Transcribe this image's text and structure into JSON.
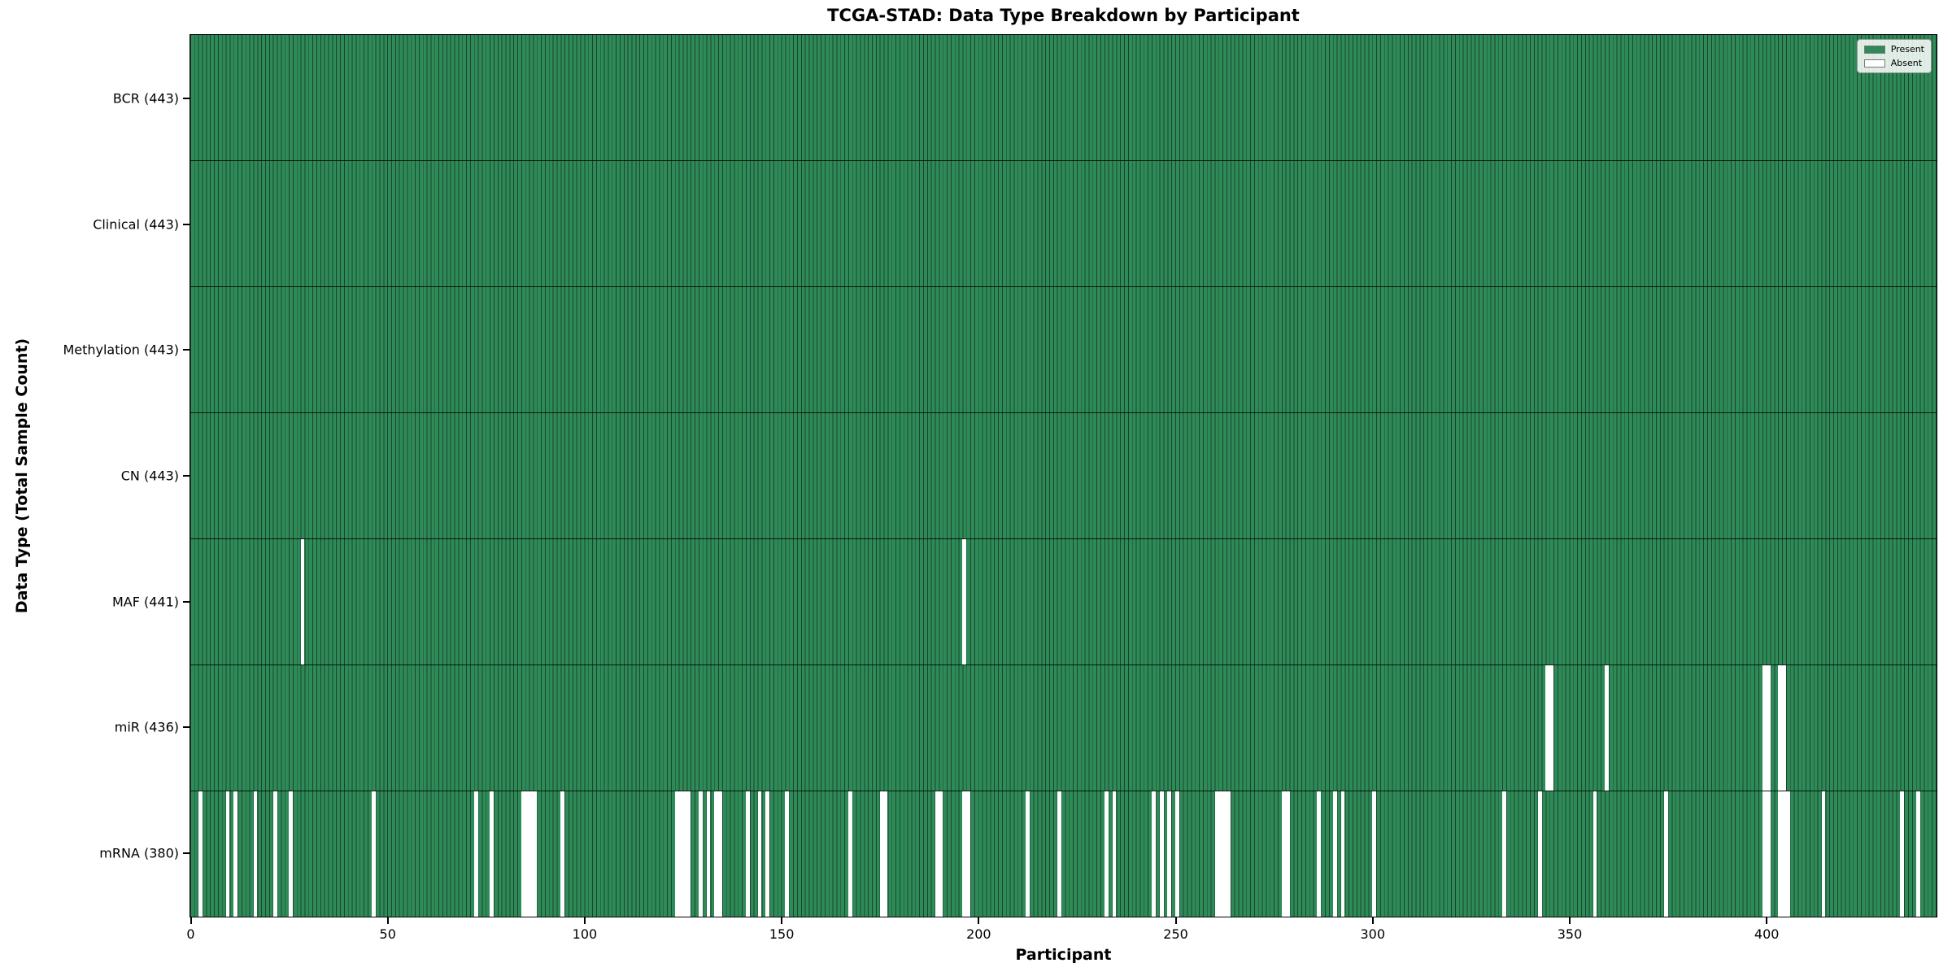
{
  "title": "TCGA-STAD: Data Type Breakdown by Participant",
  "x_axis": {
    "label": "Participant",
    "ticks": [
      0,
      50,
      100,
      150,
      200,
      250,
      300,
      350,
      400
    ]
  },
  "y_axis": {
    "label": "Data Type (Total Sample Count)"
  },
  "legend": {
    "present_label": "Present",
    "absent_label": "Absent"
  },
  "colors": {
    "present": "#2e8b57",
    "absent": "#ffffff",
    "bar_edge": "#1b4430"
  },
  "chart_data": {
    "type": "heatmap",
    "title": "TCGA-STAD: Data Type Breakdown by Participant",
    "xlabel": "Participant",
    "ylabel": "Data Type (Total Sample Count)",
    "n_participants": 443,
    "x_range": [
      0,
      443
    ],
    "grid": false,
    "legend_position": "upper right",
    "cell_states": [
      "Present",
      "Absent"
    ],
    "rows": [
      {
        "label": "BCR (443)",
        "name": "BCR",
        "total": 443,
        "absent_participants": []
      },
      {
        "label": "Clinical (443)",
        "name": "Clinical",
        "total": 443,
        "absent_participants": []
      },
      {
        "label": "Methylation (443)",
        "name": "Methylation",
        "total": 443,
        "absent_participants": []
      },
      {
        "label": "CN (443)",
        "name": "CN",
        "total": 443,
        "absent_participants": []
      },
      {
        "label": "MAF (441)",
        "name": "MAF",
        "total": 441,
        "absent_participants": [
          28,
          196
        ]
      },
      {
        "label": "miR (436)",
        "name": "miR",
        "total": 436,
        "absent_participants": [
          344,
          345,
          359,
          399,
          400,
          403,
          404
        ]
      },
      {
        "label": "mRNA (380)",
        "name": "mRNA",
        "total": 380,
        "absent_participants": [
          2,
          9,
          11,
          16,
          21,
          25,
          46,
          72,
          76,
          84,
          85,
          86,
          87,
          94,
          123,
          124,
          125,
          126,
          129,
          131,
          133,
          134,
          141,
          144,
          146,
          151,
          167,
          175,
          176,
          189,
          190,
          196,
          197,
          212,
          220,
          232,
          234,
          244,
          246,
          248,
          250,
          260,
          261,
          262,
          263,
          277,
          278,
          286,
          290,
          292,
          300,
          333,
          342,
          356,
          374,
          399,
          400,
          403,
          404,
          405,
          414,
          434,
          438
        ]
      }
    ]
  }
}
